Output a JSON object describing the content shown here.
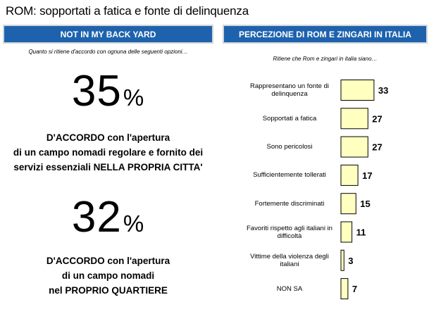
{
  "title": "ROM: sopportati a fatica e fonte di delinquenza",
  "left_panel": {
    "header": "NOT IN MY BACK YARD",
    "subtitle": "Quanto si ritiene d'accordo con ognuna delle seguenti opzioni…",
    "stats": [
      {
        "number": "35",
        "unit": "%",
        "lines": [
          "D'ACCORDO con l'apertura",
          "di un campo nomadi regolare e fornito dei",
          "servizi essenziali NELLA PROPRIA CITTA'"
        ]
      },
      {
        "number": "32",
        "unit": "%",
        "lines": [
          "D'ACCORDO con l'apertura",
          "di un campo nomadi",
          "nel PROPRIO QUARTIERE"
        ]
      }
    ]
  },
  "right_panel": {
    "header": "PERCEZIONE DI ROM E ZINGARI IN ITALIA",
    "subtitle": "Ritiene che Rom e zingari in italia siano…"
  },
  "colors": {
    "header_bg": "#1e62ad",
    "bar_fill": "#ffffc0",
    "bar_stroke": "#000000"
  },
  "chart_data": {
    "type": "bar",
    "orientation": "horizontal",
    "categories": [
      "Rappresentano un fonte di delinquenza",
      "Sopportati a fatica",
      "Sono pericolosi",
      "Sufficientemente tollerati",
      "Fortemente discriminati",
      "Favoriti rispetto agli italiani in difficoltà",
      "Vittime della violenza degli italiani",
      "NON SA"
    ],
    "values": [
      33,
      27,
      27,
      17,
      15,
      11,
      3,
      7
    ],
    "title": "",
    "xlabel": "",
    "ylabel": "",
    "data_labels": true,
    "grid": false,
    "legend": "none",
    "xlim": [
      0,
      33
    ]
  }
}
